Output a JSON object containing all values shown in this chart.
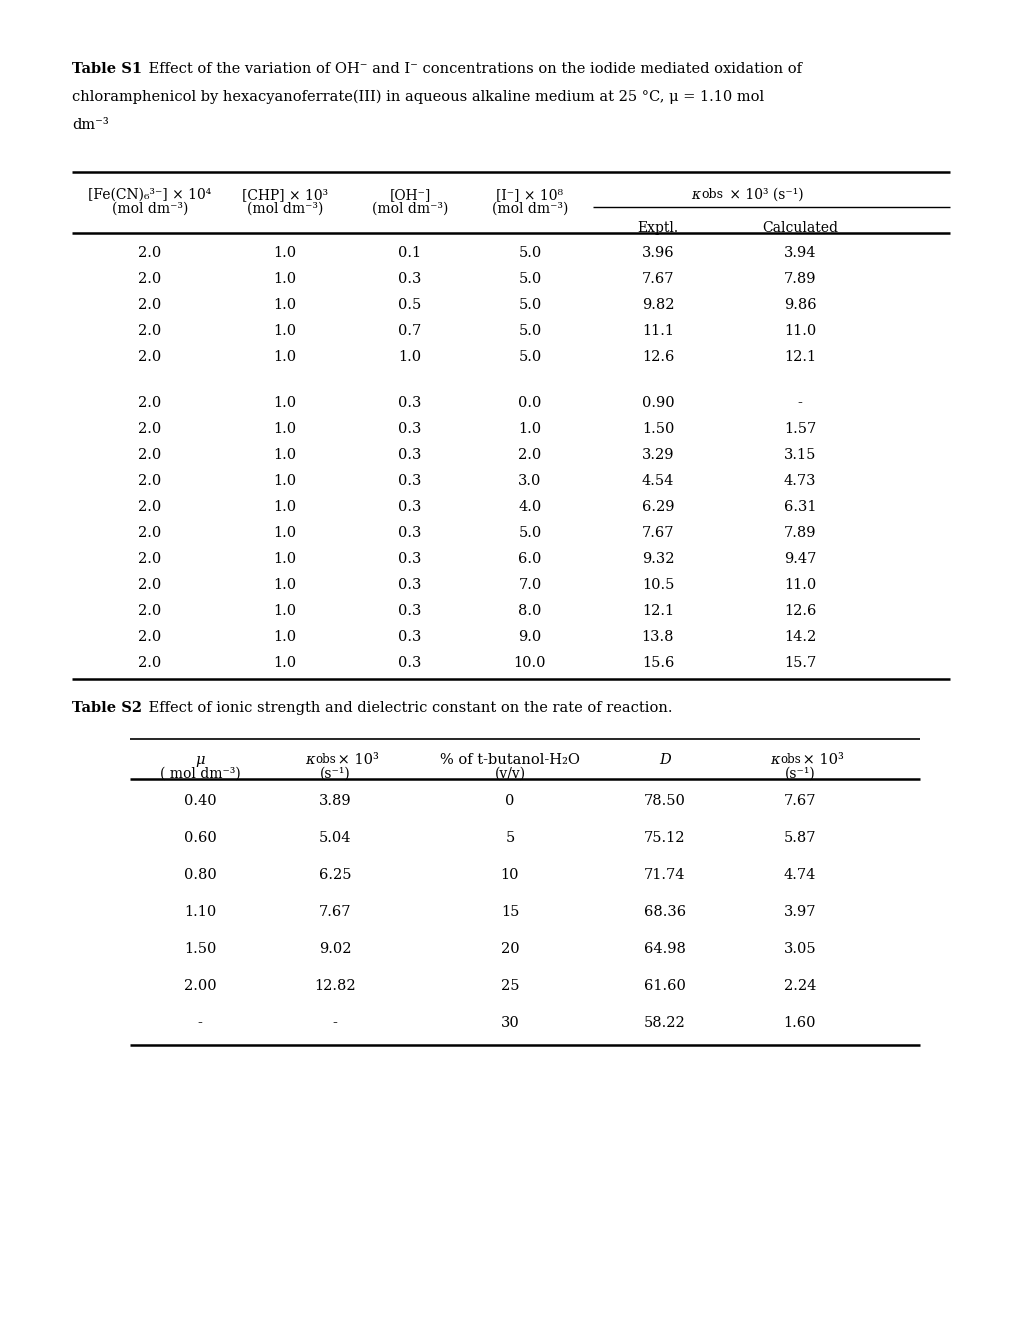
{
  "bg_color": "#ffffff",
  "text_color": "#000000",
  "font_size": 10.5,
  "table1_data_group1": [
    [
      "2.0",
      "1.0",
      "0.1",
      "5.0",
      "3.96",
      "3.94"
    ],
    [
      "2.0",
      "1.0",
      "0.3",
      "5.0",
      "7.67",
      "7.89"
    ],
    [
      "2.0",
      "1.0",
      "0.5",
      "5.0",
      "9.82",
      "9.86"
    ],
    [
      "2.0",
      "1.0",
      "0.7",
      "5.0",
      "11.1",
      "11.0"
    ],
    [
      "2.0",
      "1.0",
      "1.0",
      "5.0",
      "12.6",
      "12.1"
    ]
  ],
  "table1_data_group2": [
    [
      "2.0",
      "1.0",
      "0.3",
      "0.0",
      "0.90",
      "-"
    ],
    [
      "2.0",
      "1.0",
      "0.3",
      "1.0",
      "1.50",
      "1.57"
    ],
    [
      "2.0",
      "1.0",
      "0.3",
      "2.0",
      "3.29",
      "3.15"
    ],
    [
      "2.0",
      "1.0",
      "0.3",
      "3.0",
      "4.54",
      "4.73"
    ],
    [
      "2.0",
      "1.0",
      "0.3",
      "4.0",
      "6.29",
      "6.31"
    ],
    [
      "2.0",
      "1.0",
      "0.3",
      "5.0",
      "7.67",
      "7.89"
    ],
    [
      "2.0",
      "1.0",
      "0.3",
      "6.0",
      "9.32",
      "9.47"
    ],
    [
      "2.0",
      "1.0",
      "0.3",
      "7.0",
      "10.5",
      "11.0"
    ],
    [
      "2.0",
      "1.0",
      "0.3",
      "8.0",
      "12.1",
      "12.6"
    ],
    [
      "2.0",
      "1.0",
      "0.3",
      "9.0",
      "13.8",
      "14.2"
    ],
    [
      "2.0",
      "1.0",
      "0.3",
      "10.0",
      "15.6",
      "15.7"
    ]
  ],
  "table2_data": [
    [
      "0.40",
      "3.89",
      "0",
      "78.50",
      "7.67"
    ],
    [
      "0.60",
      "5.04",
      "5",
      "75.12",
      "5.87"
    ],
    [
      "0.80",
      "6.25",
      "10",
      "71.74",
      "4.74"
    ],
    [
      "1.10",
      "7.67",
      "15",
      "68.36",
      "3.97"
    ],
    [
      "1.50",
      "9.02",
      "20",
      "64.98",
      "3.05"
    ],
    [
      "2.00",
      "12.82",
      "25",
      "61.60",
      "2.24"
    ],
    [
      "-",
      "-",
      "30",
      "58.22",
      "1.60"
    ]
  ]
}
